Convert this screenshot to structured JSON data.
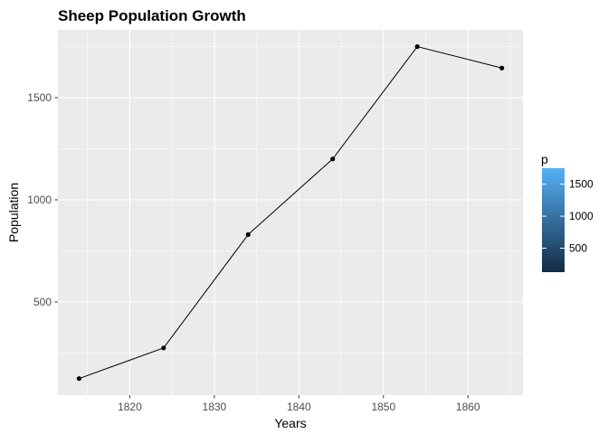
{
  "chart_data": {
    "type": "line",
    "title": "Sheep Population Growth",
    "xlabel": "Years",
    "ylabel": "Population",
    "x": [
      1814,
      1824,
      1834,
      1844,
      1854,
      1864
    ],
    "series": [
      {
        "values": [
          125,
          275,
          830,
          1200,
          1750,
          1645
        ]
      }
    ],
    "xlim": [
      1811.5,
      1866.5
    ],
    "ylim": [
      44,
      1832
    ],
    "xticks": [
      1820,
      1830,
      1840,
      1850,
      1860
    ],
    "yticks": [
      500,
      1000,
      1500
    ],
    "grid": true,
    "panel_background": "#ebebeb",
    "grid_color": "#ffffff",
    "line_color": "#000000",
    "point_color": "#000000",
    "legend": {
      "title": "p",
      "position": "right",
      "min": 125,
      "max": 1750,
      "ticks": [
        500,
        1000,
        1500
      ],
      "gradient_low": "#132b43",
      "gradient_high": "#56b1f7"
    }
  }
}
